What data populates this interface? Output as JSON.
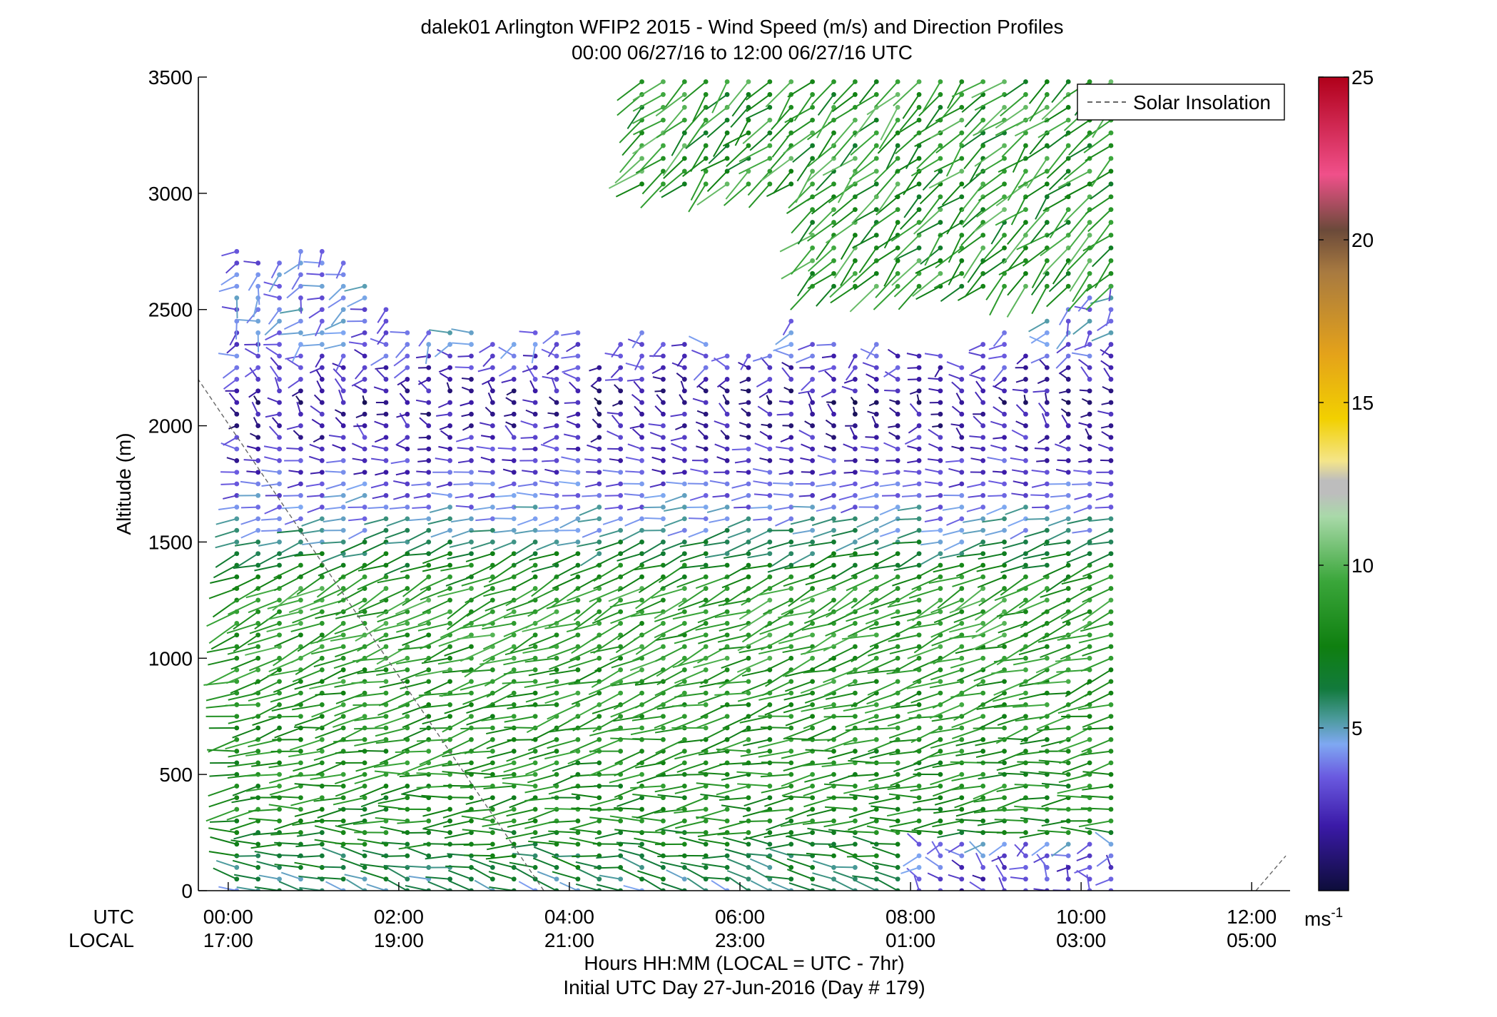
{
  "chart_data": {
    "type": "wind-barb-profile",
    "title": "dalek01 Arlington WFIP2 2015 - Wind Speed (m/s) and Direction Profiles",
    "subtitle": "00:00 06/27/16 to 12:00 06/27/16  UTC",
    "ylabel": "Altitude (m)",
    "xlabel": "Hours HH:MM  (LOCAL = UTC - 7hr)",
    "xlabel2": "Initial UTC Day 27-Jun-2016 (Day # 179)",
    "xlim_hours": [
      -0.35,
      12.45
    ],
    "ylim": [
      0,
      3500
    ],
    "grid": false,
    "y_ticks": [
      0,
      500,
      1000,
      1500,
      2000,
      2500,
      3000,
      3500
    ],
    "y_tick_labels": [
      "0",
      "500",
      "1000",
      "1500",
      "2000",
      "2500",
      "3000",
      "3500"
    ],
    "x_ticks_hours": [
      0,
      2,
      4,
      6,
      8,
      10,
      12
    ],
    "row_label_utc": "UTC",
    "row_label_local": "LOCAL",
    "x_tick_labels_utc": [
      "00:00",
      "02:00",
      "04:00",
      "06:00",
      "08:00",
      "10:00",
      "12:00"
    ],
    "x_tick_labels_local": [
      "17:00",
      "19:00",
      "21:00",
      "23:00",
      "01:00",
      "03:00",
      "05:00"
    ],
    "legend": {
      "entries": [
        "Solar Insolation"
      ],
      "placement": "top-right"
    },
    "solar_insolation": {
      "segments": [
        {
          "x": [
            -0.5,
            3.7
          ],
          "y": [
            2280,
            0
          ]
        },
        {
          "x": [
            12.05,
            12.4
          ],
          "y": [
            0,
            150
          ]
        }
      ],
      "color": "#666666"
    },
    "colorbar": {
      "min": 0,
      "max": 25,
      "ticks": [
        5,
        10,
        15,
        20,
        25
      ],
      "tick_labels": [
        "5",
        "10",
        "15",
        "20",
        "25"
      ],
      "unit_label": "ms",
      "unit_exp": "-1",
      "stops": [
        {
          "v": 0,
          "c": "#0d0d3a"
        },
        {
          "v": 2,
          "c": "#3b1aa8"
        },
        {
          "v": 3.5,
          "c": "#6a5ae0"
        },
        {
          "v": 4.5,
          "c": "#7fa8f2"
        },
        {
          "v": 5.3,
          "c": "#4a9a9a"
        },
        {
          "v": 6.2,
          "c": "#127a3c"
        },
        {
          "v": 7.5,
          "c": "#0f7f10"
        },
        {
          "v": 9.5,
          "c": "#3aa63a"
        },
        {
          "v": 11.5,
          "c": "#a9d9a9"
        },
        {
          "v": 12.2,
          "c": "#bdbdbd"
        },
        {
          "v": 12.6,
          "c": "#bdbdbd"
        },
        {
          "v": 13.2,
          "c": "#f4e58a"
        },
        {
          "v": 14.5,
          "c": "#f2d000"
        },
        {
          "v": 16.5,
          "c": "#e4a21a"
        },
        {
          "v": 19,
          "c": "#a87a40"
        },
        {
          "v": 20.3,
          "c": "#6b4a3a"
        },
        {
          "v": 22,
          "c": "#f0508a"
        },
        {
          "v": 25,
          "c": "#b0001a"
        }
      ]
    },
    "barb_field": {
      "times_hours": [
        0.1,
        0.35,
        0.6,
        0.85,
        1.1,
        1.35,
        1.6,
        1.85,
        2.1,
        2.35,
        2.6,
        2.85,
        3.1,
        3.35,
        3.6,
        3.85,
        4.1,
        4.35,
        4.6,
        4.85,
        5.1,
        5.35,
        5.6,
        5.85,
        6.1,
        6.35,
        6.6,
        6.85,
        7.1,
        7.35,
        7.6,
        7.85,
        8.1,
        8.35,
        8.6,
        8.85,
        9.1,
        9.35,
        9.6,
        9.85,
        10.1,
        10.35
      ],
      "altitude_step_m": 50,
      "tops_m": [
        2760,
        2720,
        2700,
        2760,
        2760,
        2740,
        2620,
        2520,
        2420,
        2420,
        2400,
        2400,
        2380,
        2380,
        2400,
        2400,
        2400,
        2280,
        2350,
        2400,
        2380,
        2360,
        2360,
        2320,
        2300,
        2310,
        2450,
        2380,
        2380,
        2340,
        2380,
        2340,
        2320,
        2340,
        2290,
        2350,
        2420,
        2300,
        2450,
        2500,
        2580,
        2600
      ],
      "upper_region": {
        "x_range_hours": [
          4.85,
          10.35
        ],
        "y_range_m": [
          2600,
          3500
        ],
        "direction_deg": 225,
        "mean_speed_ms": 8.5
      },
      "profile": [
        {
          "z": 0,
          "speed": 5.5,
          "dir": 290
        },
        {
          "z": 300,
          "speed": 8,
          "dir": 265
        },
        {
          "z": 1300,
          "speed": 9,
          "dir": 245
        },
        {
          "z": 1550,
          "speed": 5,
          "dir": 255
        },
        {
          "z": 1800,
          "speed": 3,
          "dir": 270
        },
        {
          "z": 2100,
          "speed": 1.5,
          "dir": 300
        },
        {
          "z": 2400,
          "speed": 4,
          "dir": 230
        }
      ]
    }
  }
}
